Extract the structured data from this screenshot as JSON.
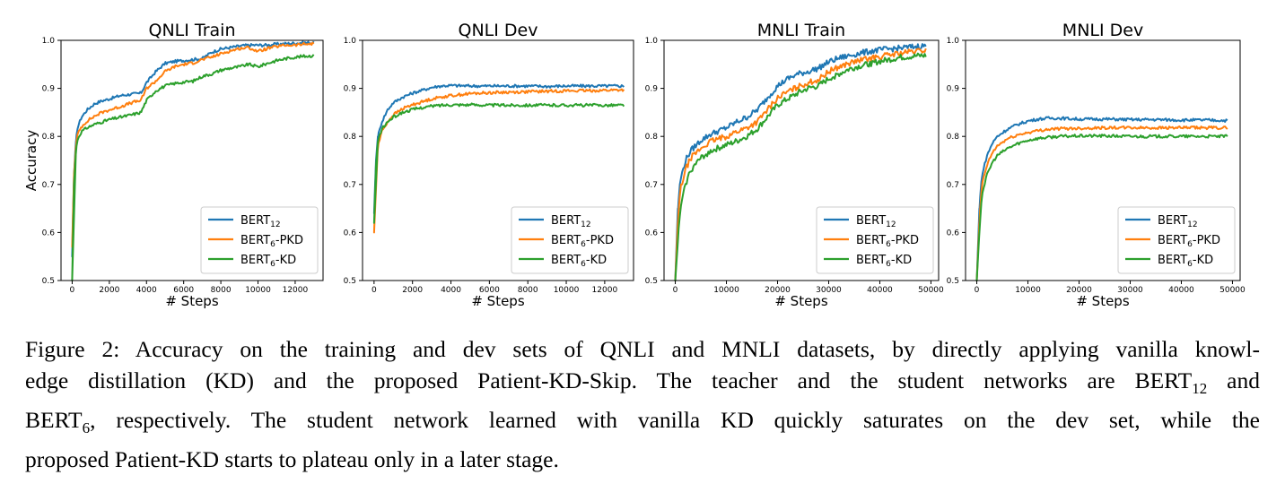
{
  "chart_data": [
    {
      "type": "line",
      "title": "QNLI Train",
      "xlabel": "# Steps",
      "ylabel": "Accuracy",
      "xlim": [
        -600,
        13500
      ],
      "ylim": [
        0.5,
        1.0
      ],
      "xticks": [
        "0",
        "2000",
        "4000",
        "6000",
        "8000",
        "10000",
        "12000"
      ],
      "yticks": [
        "0.5",
        "0.6",
        "0.7",
        "0.8",
        "0.9",
        "1.0"
      ],
      "legend_position": "lower-right",
      "series": [
        {
          "name": "BERT12",
          "color": "#1f77b4",
          "x": [
            0,
            100,
            200,
            300,
            500,
            800,
            1200,
            1600,
            2000,
            2600,
            3200,
            3700,
            4000,
            4500,
            5000,
            5500,
            6000,
            6500,
            7000,
            7500,
            8000,
            8500,
            9000,
            9500,
            10000,
            10500,
            11000,
            11500,
            12000,
            12500,
            13000
          ],
          "y": [
            0.55,
            0.72,
            0.79,
            0.82,
            0.84,
            0.855,
            0.868,
            0.874,
            0.878,
            0.885,
            0.888,
            0.89,
            0.912,
            0.935,
            0.952,
            0.956,
            0.958,
            0.96,
            0.962,
            0.975,
            0.982,
            0.985,
            0.988,
            0.99,
            0.99,
            0.99,
            0.992,
            0.993,
            0.994,
            0.995,
            0.995
          ]
        },
        {
          "name": "BERT6-PKD",
          "color": "#ff7f0e",
          "x": [
            0,
            100,
            200,
            300,
            500,
            800,
            1200,
            1600,
            2000,
            2600,
            3200,
            3700,
            4000,
            4500,
            5000,
            5500,
            6000,
            6500,
            7000,
            7500,
            8000,
            8500,
            9000,
            9500,
            10000,
            10500,
            11000,
            11500,
            12000,
            12500,
            13000
          ],
          "y": [
            0.57,
            0.72,
            0.78,
            0.805,
            0.82,
            0.832,
            0.842,
            0.85,
            0.855,
            0.862,
            0.87,
            0.875,
            0.9,
            0.915,
            0.935,
            0.945,
            0.95,
            0.953,
            0.96,
            0.965,
            0.972,
            0.978,
            0.983,
            0.985,
            0.977,
            0.983,
            0.987,
            0.99,
            0.99,
            0.992,
            0.993
          ]
        },
        {
          "name": "BERT6-KD",
          "color": "#2ca02c",
          "x": [
            0,
            100,
            200,
            300,
            500,
            800,
            1200,
            1600,
            2000,
            2600,
            3200,
            3700,
            4000,
            4500,
            5000,
            5500,
            6000,
            6500,
            7000,
            7500,
            8000,
            8500,
            9000,
            9500,
            10000,
            10500,
            11000,
            11500,
            12000,
            12500,
            13000
          ],
          "y": [
            0.5,
            0.7,
            0.77,
            0.795,
            0.81,
            0.818,
            0.825,
            0.83,
            0.835,
            0.84,
            0.845,
            0.85,
            0.875,
            0.895,
            0.905,
            0.91,
            0.913,
            0.915,
            0.925,
            0.93,
            0.938,
            0.942,
            0.945,
            0.95,
            0.945,
            0.952,
            0.958,
            0.962,
            0.965,
            0.967,
            0.968
          ]
        }
      ]
    },
    {
      "type": "line",
      "title": "QNLI Dev",
      "xlabel": "# Steps",
      "ylabel": "",
      "xlim": [
        -600,
        13500
      ],
      "ylim": [
        0.5,
        1.0
      ],
      "xticks": [
        "0",
        "2000",
        "4000",
        "6000",
        "8000",
        "10000",
        "12000"
      ],
      "yticks": [
        "0.5",
        "0.6",
        "0.7",
        "0.8",
        "0.9",
        "1.0"
      ],
      "legend_position": "lower-right",
      "series": [
        {
          "name": "BERT12",
          "color": "#1f77b4",
          "x": [
            0,
            100,
            200,
            400,
            700,
            1000,
            1500,
            2000,
            2500,
            3000,
            3500,
            4000,
            5000,
            6000,
            7000,
            8000,
            9000,
            10000,
            11000,
            12000,
            13000
          ],
          "y": [
            0.64,
            0.75,
            0.8,
            0.83,
            0.855,
            0.87,
            0.882,
            0.89,
            0.896,
            0.902,
            0.905,
            0.906,
            0.905,
            0.905,
            0.905,
            0.905,
            0.904,
            0.905,
            0.905,
            0.905,
            0.905
          ]
        },
        {
          "name": "BERT6-PKD",
          "color": "#ff7f0e",
          "x": [
            0,
            100,
            200,
            400,
            700,
            1000,
            1500,
            2000,
            2500,
            3000,
            3500,
            4000,
            5000,
            6000,
            7000,
            8000,
            9000,
            10000,
            11000,
            12000,
            13000
          ],
          "y": [
            0.6,
            0.72,
            0.78,
            0.81,
            0.83,
            0.845,
            0.858,
            0.866,
            0.872,
            0.878,
            0.882,
            0.885,
            0.889,
            0.891,
            0.892,
            0.893,
            0.894,
            0.895,
            0.895,
            0.896,
            0.897
          ]
        },
        {
          "name": "BERT6-KD",
          "color": "#2ca02c",
          "x": [
            0,
            100,
            200,
            400,
            700,
            1000,
            1500,
            2000,
            2500,
            3000,
            3500,
            4000,
            5000,
            6000,
            7000,
            8000,
            9000,
            10000,
            11000,
            12000,
            13000
          ],
          "y": [
            0.62,
            0.74,
            0.79,
            0.815,
            0.83,
            0.84,
            0.85,
            0.856,
            0.86,
            0.863,
            0.865,
            0.866,
            0.866,
            0.865,
            0.865,
            0.865,
            0.865,
            0.865,
            0.865,
            0.865,
            0.865
          ]
        }
      ]
    },
    {
      "type": "line",
      "title": "MNLI Train",
      "xlabel": "# Steps",
      "ylabel": "",
      "xlim": [
        -2200,
        51500
      ],
      "ylim": [
        0.5,
        1.0
      ],
      "xticks": [
        "0",
        "10000",
        "20000",
        "30000",
        "40000",
        "50000"
      ],
      "yticks": [
        "0.5",
        "0.6",
        "0.7",
        "0.8",
        "0.9",
        "1.0"
      ],
      "legend_position": "lower-right",
      "series": [
        {
          "name": "BERT12",
          "color": "#1f77b4",
          "x": [
            0,
            500,
            1000,
            2000,
            3000,
            5000,
            7000,
            10000,
            12000,
            14000,
            16000,
            18000,
            20000,
            22000,
            24000,
            26000,
            28000,
            30000,
            32000,
            34000,
            36000,
            38000,
            40000,
            42000,
            44000,
            46000,
            48000,
            49000
          ],
          "y": [
            0.5,
            0.65,
            0.71,
            0.75,
            0.77,
            0.792,
            0.805,
            0.818,
            0.83,
            0.84,
            0.855,
            0.88,
            0.905,
            0.92,
            0.93,
            0.935,
            0.942,
            0.955,
            0.963,
            0.968,
            0.973,
            0.977,
            0.98,
            0.982,
            0.984,
            0.986,
            0.988,
            0.989
          ]
        },
        {
          "name": "BERT6-PKD",
          "color": "#ff7f0e",
          "x": [
            0,
            500,
            1000,
            2000,
            3000,
            5000,
            7000,
            10000,
            12000,
            14000,
            16000,
            18000,
            20000,
            22000,
            24000,
            26000,
            28000,
            30000,
            32000,
            34000,
            36000,
            38000,
            40000,
            42000,
            44000,
            46000,
            48000,
            49000
          ],
          "y": [
            0.5,
            0.62,
            0.69,
            0.73,
            0.755,
            0.775,
            0.79,
            0.8,
            0.81,
            0.818,
            0.83,
            0.855,
            0.88,
            0.893,
            0.903,
            0.912,
            0.918,
            0.935,
            0.945,
            0.952,
            0.958,
            0.962,
            0.966,
            0.97,
            0.973,
            0.976,
            0.978,
            0.979
          ]
        },
        {
          "name": "BERT6-KD",
          "color": "#2ca02c",
          "x": [
            0,
            500,
            1000,
            2000,
            3000,
            5000,
            7000,
            10000,
            12000,
            14000,
            16000,
            18000,
            20000,
            22000,
            24000,
            26000,
            28000,
            30000,
            32000,
            34000,
            36000,
            38000,
            40000,
            42000,
            44000,
            46000,
            48000,
            49000
          ],
          "y": [
            0.5,
            0.58,
            0.65,
            0.7,
            0.73,
            0.755,
            0.77,
            0.782,
            0.79,
            0.8,
            0.815,
            0.84,
            0.865,
            0.878,
            0.89,
            0.9,
            0.905,
            0.92,
            0.93,
            0.94,
            0.946,
            0.951,
            0.956,
            0.96,
            0.964,
            0.966,
            0.968,
            0.968
          ]
        }
      ]
    },
    {
      "type": "line",
      "title": "MNLI Dev",
      "xlabel": "# Steps",
      "ylabel": "",
      "xlim": [
        -2200,
        51500
      ],
      "ylim": [
        0.5,
        1.0
      ],
      "xticks": [
        "0",
        "10000",
        "20000",
        "30000",
        "40000",
        "50000"
      ],
      "yticks": [
        "0.5",
        "0.6",
        "0.7",
        "0.8",
        "0.9",
        "1.0"
      ],
      "legend_position": "lower-right",
      "series": [
        {
          "name": "BERT12",
          "color": "#1f77b4",
          "x": [
            0,
            500,
            1000,
            2000,
            3000,
            4000,
            6000,
            8000,
            10000,
            12000,
            14000,
            16000,
            20000,
            25000,
            30000,
            35000,
            40000,
            45000,
            49000
          ],
          "y": [
            0.5,
            0.65,
            0.72,
            0.76,
            0.785,
            0.8,
            0.815,
            0.825,
            0.832,
            0.836,
            0.838,
            0.838,
            0.836,
            0.836,
            0.835,
            0.835,
            0.834,
            0.834,
            0.833
          ]
        },
        {
          "name": "BERT6-PKD",
          "color": "#ff7f0e",
          "x": [
            0,
            500,
            1000,
            2000,
            3000,
            4000,
            6000,
            8000,
            10000,
            12000,
            14000,
            16000,
            20000,
            25000,
            30000,
            35000,
            40000,
            45000,
            49000
          ],
          "y": [
            0.5,
            0.62,
            0.7,
            0.74,
            0.765,
            0.78,
            0.795,
            0.803,
            0.808,
            0.812,
            0.815,
            0.816,
            0.817,
            0.818,
            0.818,
            0.818,
            0.818,
            0.818,
            0.818
          ]
        },
        {
          "name": "BERT6-KD",
          "color": "#2ca02c",
          "x": [
            0,
            500,
            1000,
            2000,
            3000,
            4000,
            6000,
            8000,
            10000,
            12000,
            14000,
            16000,
            20000,
            25000,
            30000,
            35000,
            40000,
            45000,
            49000
          ],
          "y": [
            0.5,
            0.6,
            0.68,
            0.72,
            0.745,
            0.76,
            0.775,
            0.785,
            0.792,
            0.796,
            0.798,
            0.8,
            0.801,
            0.801,
            0.8,
            0.8,
            0.8,
            0.8,
            0.8
          ]
        }
      ]
    }
  ],
  "caption": {
    "line1": "Figure 2: Accuracy on the training and dev sets of QNLI and MNLI datasets, by directly applying vanilla knowl-",
    "line2_a": "edge distillation (KD) and the proposed Patient-KD-Skip. The teacher and the student networks are BERT",
    "line2_sub": "12",
    "line2_b": " and",
    "line3_a": "BERT",
    "line3_sub": "6",
    "line3_b": ", respectively.  The student network learned with vanilla KD quickly saturates on the dev set, while the",
    "line4": "proposed Patient-KD starts to plateau only in a later stage."
  }
}
